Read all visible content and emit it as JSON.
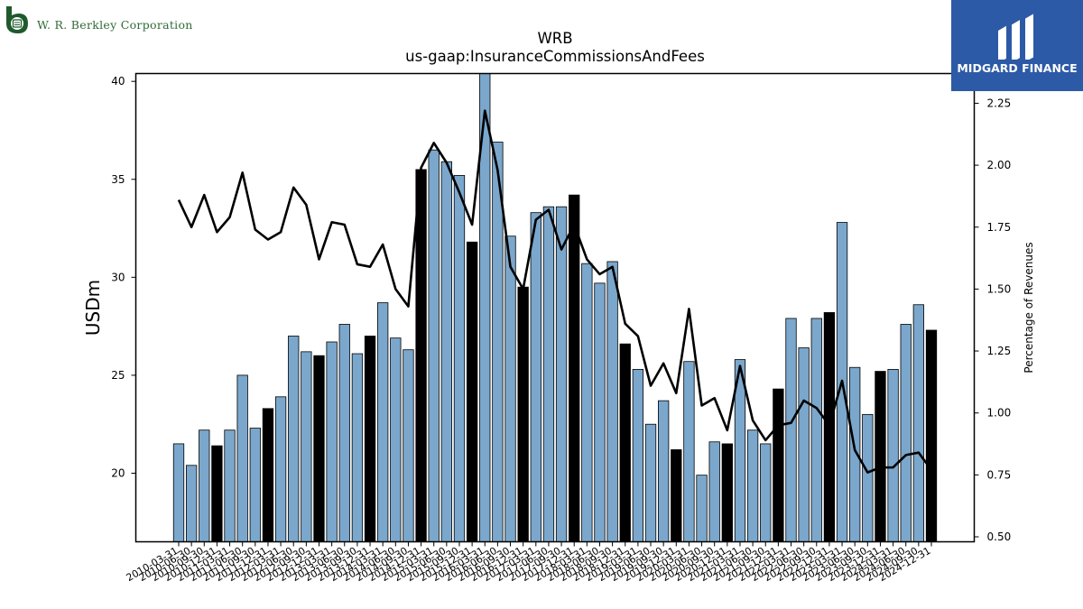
{
  "header": {
    "company_name": "W. R. Berkley Corporation",
    "brand_name": "MIDGARD FINANCE"
  },
  "colors": {
    "bar_regular": "#7ba7cc",
    "bar_year_end": "#000000",
    "line": "#000000",
    "brand_background": "#2d5aa6",
    "company_green": "#2e6b36"
  },
  "chart_data": {
    "type": "bar",
    "title": "WRB",
    "subtitle": "us-gaap:InsuranceCommissionsAndFees",
    "ylabel": "USDm",
    "y2label": "Percentage of Revenues",
    "ylim": [
      16.5,
      40.4
    ],
    "y2lim": [
      0.48,
      2.37
    ],
    "yticks": [
      20,
      25,
      30,
      35,
      40
    ],
    "y2ticks": [
      "0.50",
      "0.75",
      "1.00",
      "1.25",
      "1.50",
      "1.75",
      "2.00",
      "2.25"
    ],
    "grid": false,
    "categories": [
      "2010-03-31",
      "2010-06-30",
      "2010-09-30",
      "2010-12-31",
      "2011-03-31",
      "2011-06-30",
      "2011-09-30",
      "2011-12-31",
      "2012-03-31",
      "2012-06-30",
      "2012-09-30",
      "2012-12-31",
      "2013-03-31",
      "2013-06-30",
      "2013-09-30",
      "2013-12-31",
      "2014-03-31",
      "2014-06-30",
      "2014-09-30",
      "2014-12-31",
      "2015-03-31",
      "2015-06-30",
      "2015-09-30",
      "2015-12-31",
      "2016-03-31",
      "2016-06-30",
      "2016-09-30",
      "2016-12-31",
      "2017-03-31",
      "2017-06-30",
      "2017-09-30",
      "2017-12-31",
      "2018-03-31",
      "2018-06-30",
      "2018-09-30",
      "2018-12-31",
      "2019-03-31",
      "2019-06-30",
      "2019-09-30",
      "2019-12-31",
      "2020-03-31",
      "2020-06-30",
      "2020-09-30",
      "2020-12-31",
      "2021-03-31",
      "2021-06-30",
      "2021-09-30",
      "2021-12-31",
      "2022-03-31",
      "2022-06-30",
      "2022-09-30",
      "2022-12-31",
      "2023-03-31",
      "2023-06-30",
      "2023-09-30",
      "2023-12-31",
      "2024-03-31",
      "2024-06-30",
      "2024-09-30",
      "2024-12-31"
    ],
    "xtick_labels": [
      "2010-03-31",
      "2010-06-30",
      "2010-09-30",
      "2010-12-31",
      "2011-03-31",
      "2011-06-30",
      "2011-09-30",
      "2011-12-31",
      "2012-03-31",
      "2012-06-30",
      "2012-09-30",
      "2012-12-31",
      "2013-03-31",
      "2013-06-30",
      "2013-09-30",
      "2013-12-31",
      "2014-03-31",
      "2014-06-30",
      "2014-09-30",
      "2014-12-31",
      "2015-03-31",
      "2015-06-30",
      "2015-09-30",
      "2015-12-31",
      "2016-03-31",
      "2016-06-30",
      "2016-09-30",
      "2016-12-31",
      "2017-03-31",
      "2017-06-30",
      "2017-09-30",
      "2017-12-31",
      "2018-03-31",
      "2018-06-30",
      "2018-09-30",
      "2018-12-31",
      "2019-03-31",
      "2019-06-30",
      "2019-09-30",
      "2019-12-31",
      "2020-03-31",
      "2020-06-30",
      "2020-09-30",
      "2020-12-31",
      "2021-03-31",
      "2021-06-30",
      "2021-09-30",
      "2021-12-31",
      "2022-03-31",
      "2022-06-30",
      "2022-09-30",
      "2022-12-31",
      "2023-03-31",
      "2023-06-30",
      "2023-09-30",
      "2023-12-31",
      "2024-03-31",
      "2024-06-30",
      "2024-09-30",
      "2024-12-31"
    ],
    "series": [
      {
        "type": "bar",
        "axis": "left",
        "values": [
          21.5,
          20.4,
          22.2,
          21.4,
          22.2,
          25.0,
          22.3,
          23.3,
          23.9,
          27.0,
          26.2,
          26.0,
          26.7,
          27.6,
          26.1,
          27.0,
          28.7,
          26.9,
          26.3,
          35.5,
          36.5,
          35.9,
          35.2,
          31.8,
          40.4,
          36.9,
          32.1,
          29.5,
          33.3,
          33.6,
          33.6,
          34.2,
          30.7,
          29.7,
          30.8,
          26.6,
          25.3,
          22.5,
          23.7,
          21.2,
          25.7,
          19.9,
          21.6,
          21.5,
          25.8,
          22.2,
          21.5,
          24.3,
          27.9,
          26.4,
          27.9,
          28.2,
          32.8,
          25.4,
          23.0,
          25.2,
          25.3,
          27.6,
          28.6,
          27.3
        ],
        "year_end_highlight": [
          false,
          false,
          false,
          true,
          false,
          false,
          false,
          true,
          false,
          false,
          false,
          true,
          false,
          false,
          false,
          true,
          false,
          false,
          false,
          true,
          false,
          false,
          false,
          true,
          false,
          false,
          false,
          true,
          false,
          false,
          false,
          true,
          false,
          false,
          false,
          true,
          false,
          false,
          false,
          true,
          false,
          false,
          false,
          true,
          false,
          false,
          false,
          true,
          false,
          false,
          false,
          true,
          false,
          false,
          false,
          true,
          false,
          false,
          false,
          true
        ]
      },
      {
        "type": "line",
        "axis": "right",
        "values": [
          1.86,
          1.75,
          1.88,
          1.73,
          1.79,
          1.97,
          1.74,
          1.7,
          1.73,
          1.91,
          1.84,
          1.62,
          1.77,
          1.76,
          1.6,
          1.59,
          1.68,
          1.5,
          1.43,
          1.99,
          2.09,
          2.01,
          1.89,
          1.76,
          2.22,
          1.98,
          1.59,
          1.5,
          1.78,
          1.82,
          1.66,
          1.76,
          1.62,
          1.56,
          1.59,
          1.36,
          1.31,
          1.11,
          1.2,
          1.08,
          1.42,
          1.03,
          1.06,
          0.93,
          1.19,
          0.97,
          0.89,
          0.95,
          0.96,
          1.05,
          1.02,
          0.95,
          1.13,
          0.85,
          0.76,
          0.78,
          0.78,
          0.83,
          0.84,
          0.77
        ]
      }
    ]
  }
}
